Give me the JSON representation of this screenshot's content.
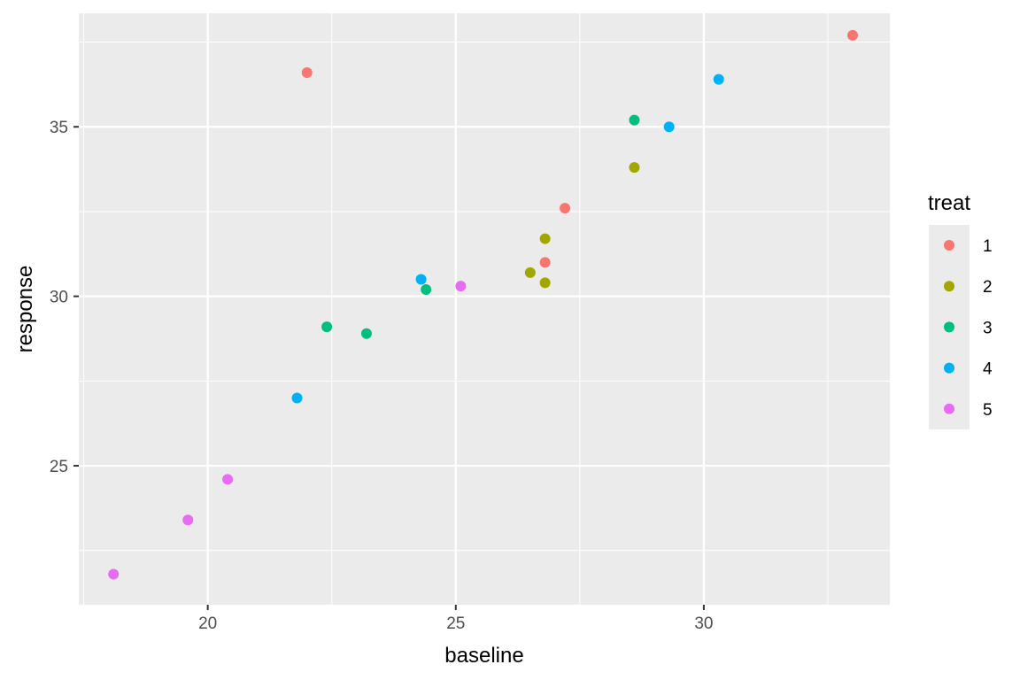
{
  "chart_data": {
    "type": "scatter",
    "title": "",
    "xlabel": "baseline",
    "ylabel": "response",
    "xlim": [
      17.4,
      33.75
    ],
    "ylim": [
      20.9,
      38.35
    ],
    "xticks": [
      20,
      25,
      30
    ],
    "yticks": [
      25,
      30,
      35
    ],
    "x_minor": [
      17.5,
      22.5,
      27.5,
      32.5
    ],
    "y_minor": [
      22.5,
      27.5,
      32.5,
      37.5
    ],
    "grid": true,
    "legend": {
      "title": "treat",
      "placement": "right"
    },
    "series": [
      {
        "name": "1",
        "color": "#F8766D",
        "points": [
          {
            "x": 22.0,
            "y": 36.6
          },
          {
            "x": 33.0,
            "y": 37.7
          },
          {
            "x": 27.2,
            "y": 32.6
          },
          {
            "x": 26.8,
            "y": 31.0
          }
        ]
      },
      {
        "name": "2",
        "color": "#A3A500",
        "points": [
          {
            "x": 28.6,
            "y": 33.8
          },
          {
            "x": 26.8,
            "y": 31.7
          },
          {
            "x": 26.5,
            "y": 30.7
          },
          {
            "x": 26.8,
            "y": 30.4
          }
        ]
      },
      {
        "name": "3",
        "color": "#00BF7D",
        "points": [
          {
            "x": 28.6,
            "y": 35.2
          },
          {
            "x": 24.4,
            "y": 30.2
          },
          {
            "x": 22.4,
            "y": 29.1
          },
          {
            "x": 23.2,
            "y": 28.9
          }
        ]
      },
      {
        "name": "4",
        "color": "#00B0F6",
        "points": [
          {
            "x": 30.3,
            "y": 36.4
          },
          {
            "x": 29.3,
            "y": 35.0
          },
          {
            "x": 24.3,
            "y": 30.5
          },
          {
            "x": 21.8,
            "y": 27.0
          }
        ]
      },
      {
        "name": "5",
        "color": "#E76BF3",
        "points": [
          {
            "x": 25.1,
            "y": 30.3
          },
          {
            "x": 20.4,
            "y": 24.6
          },
          {
            "x": 19.6,
            "y": 23.4
          },
          {
            "x": 18.1,
            "y": 21.8
          }
        ]
      }
    ]
  }
}
